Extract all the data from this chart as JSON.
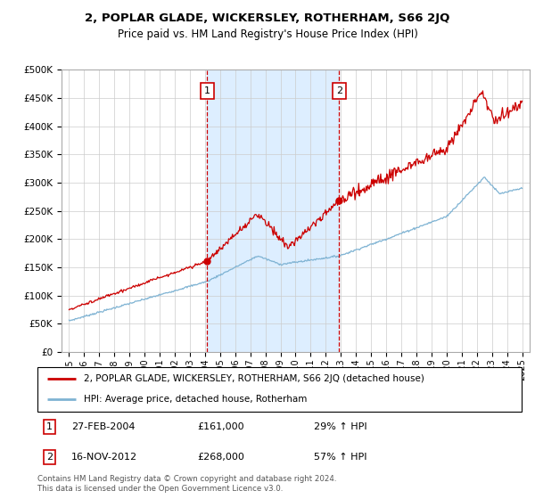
{
  "title": "2, POPLAR GLADE, WICKERSLEY, ROTHERHAM, S66 2JQ",
  "subtitle": "Price paid vs. HM Land Registry's House Price Index (HPI)",
  "legend_line1": "2, POPLAR GLADE, WICKERSLEY, ROTHERHAM, S66 2JQ (detached house)",
  "legend_line2": "HPI: Average price, detached house, Rotherham",
  "sale1_date": "27-FEB-2004",
  "sale1_price": "£161,000",
  "sale1_hpi": "29% ↑ HPI",
  "sale1_year": 2004.15,
  "sale1_value": 161000,
  "sale2_date": "16-NOV-2012",
  "sale2_price": "£268,000",
  "sale2_hpi": "57% ↑ HPI",
  "sale2_year": 2012.88,
  "sale2_value": 268000,
  "footer": "Contains HM Land Registry data © Crown copyright and database right 2024.\nThis data is licensed under the Open Government Licence v3.0.",
  "red_color": "#cc0000",
  "blue_color": "#7fb3d3",
  "shade_color": "#ddeeff",
  "ylim": [
    0,
    500000
  ],
  "xlim_start": 1994.5,
  "xlim_end": 2025.5,
  "yticks": [
    0,
    50000,
    100000,
    150000,
    200000,
    250000,
    300000,
    350000,
    400000,
    450000,
    500000
  ],
  "ytick_labels": [
    "£0",
    "£50K",
    "£100K",
    "£150K",
    "£200K",
    "£250K",
    "£300K",
    "£350K",
    "£400K",
    "£450K",
    "£500K"
  ],
  "xticks": [
    1995,
    1996,
    1997,
    1998,
    1999,
    2000,
    2001,
    2002,
    2003,
    2004,
    2005,
    2006,
    2007,
    2008,
    2009,
    2010,
    2011,
    2012,
    2013,
    2014,
    2015,
    2016,
    2017,
    2018,
    2019,
    2020,
    2021,
    2022,
    2023,
    2024,
    2025
  ]
}
